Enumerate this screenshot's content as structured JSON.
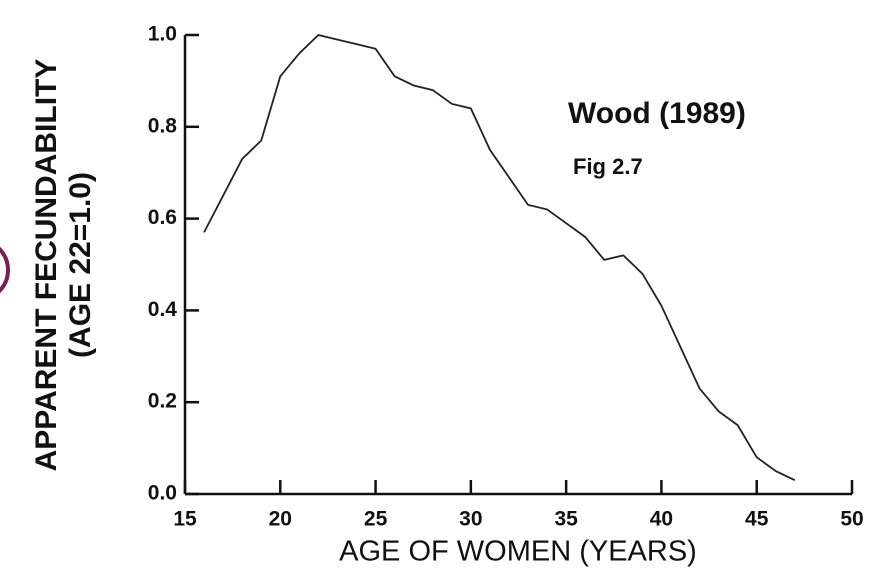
{
  "chart_data": {
    "type": "line",
    "ylabel": [
      "APPARENT FECUNDABILITY",
      "(AGE 22=1.0)"
    ],
    "xlabel": "AGE OF WOMEN (YEARS)",
    "annotations": [
      "Wood (1989)",
      "Fig 2.7"
    ],
    "annotation_color": "#8b1a2a",
    "x": [
      16,
      17,
      18,
      19,
      20,
      21,
      22,
      23,
      24,
      25,
      26,
      27,
      28,
      29,
      30,
      31,
      32,
      33,
      34,
      35,
      36,
      37,
      38,
      39,
      40,
      41,
      42,
      43,
      44,
      45,
      46,
      47
    ],
    "series": [
      {
        "color": "#222222",
        "values": [
          0.57,
          0.65,
          0.73,
          0.77,
          0.91,
          0.96,
          1.0,
          0.99,
          0.98,
          0.97,
          0.91,
          0.89,
          0.88,
          0.85,
          0.84,
          0.75,
          0.69,
          0.63,
          0.62,
          0.59,
          0.56,
          0.51,
          0.52,
          0.48,
          0.41,
          0.32,
          0.23,
          0.18,
          0.15,
          0.08,
          0.05,
          0.03
        ]
      }
    ],
    "xlim": [
      15,
      50
    ],
    "xticks": [
      15,
      20,
      25,
      30,
      35,
      40,
      45,
      50
    ],
    "ylim": [
      0,
      1
    ],
    "yticks": [
      {
        "value": 0,
        "label": "0.0"
      },
      0.2,
      0.4,
      0.6,
      0.8,
      {
        "value": 1,
        "label": "1.0"
      }
    ],
    "grid": false
  }
}
